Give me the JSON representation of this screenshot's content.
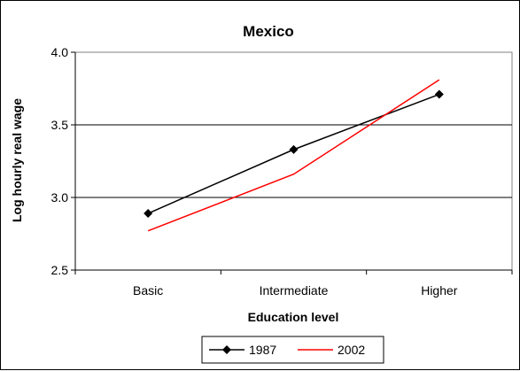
{
  "chart_data": {
    "type": "line",
    "title": "Mexico",
    "xlabel": "Education level",
    "ylabel": "Log hourly real wage",
    "categories": [
      "Basic",
      "Intermediate",
      "Higher"
    ],
    "ylim": [
      2.5,
      4.0
    ],
    "yticks": [
      "2.5",
      "3.0",
      "3.5",
      "4.0"
    ],
    "grid": true,
    "legend_position": "bottom",
    "series": [
      {
        "name": "1987",
        "values": [
          2.89,
          3.33,
          3.71
        ],
        "color": "#000000",
        "marker": "diamond"
      },
      {
        "name": "2002",
        "values": [
          2.77,
          3.16,
          3.81
        ],
        "color": "#ff0000",
        "marker": "none"
      }
    ]
  }
}
